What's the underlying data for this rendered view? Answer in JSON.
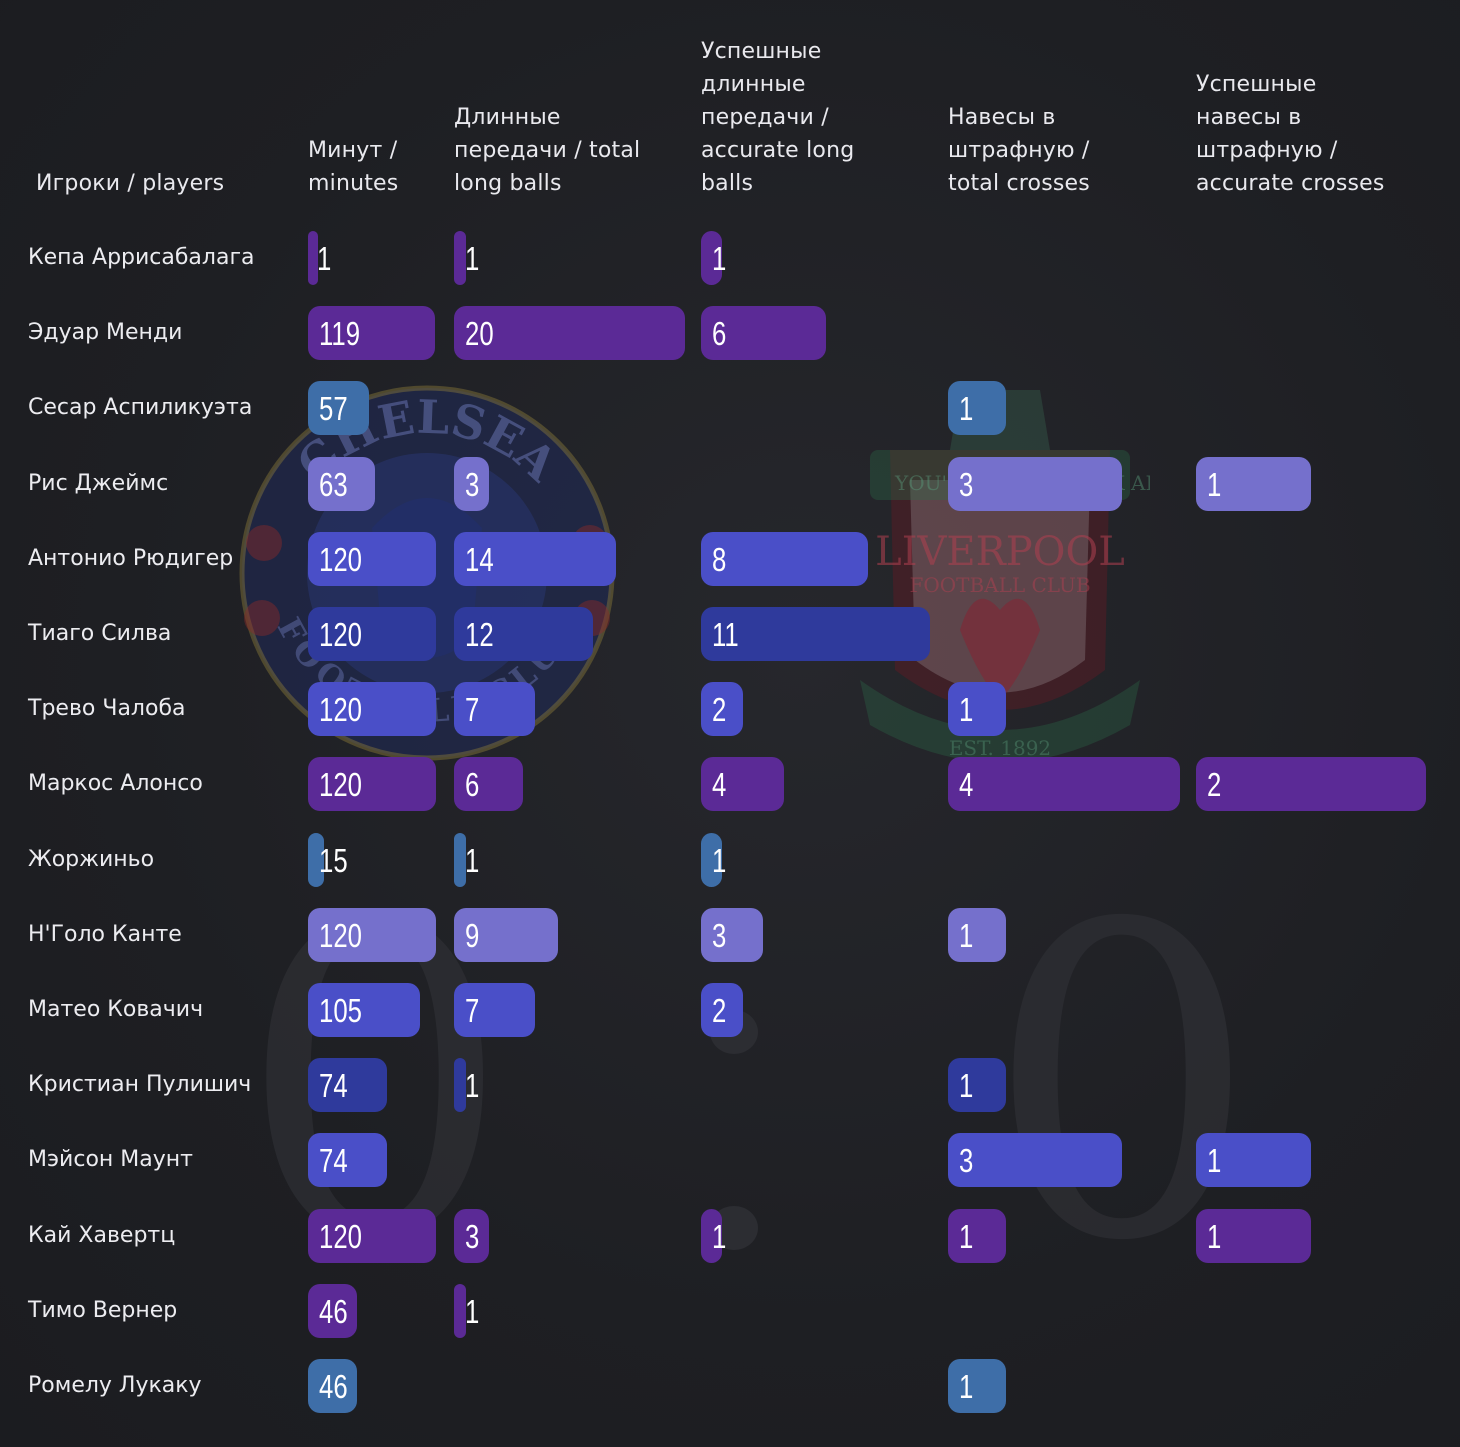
{
  "watermark": {
    "left_score": "0",
    "right_score": "0",
    "left_crest_text": "CHELSEA",
    "left_crest_sub": "FOOTBALL CLUB",
    "right_crest_text": "LIVERPOOL",
    "right_crest_sub": "FOOTBALL CLUB",
    "right_crest_banner": "YOU'LL NEVER WALK ALONE",
    "right_crest_year": "EST. 1892"
  },
  "colors": {
    "background": "#1e1f23",
    "purple": "#5b2a96",
    "lavender": "#7570cc",
    "blue": "#4a4fc8",
    "navy": "#2f3a9c",
    "steel": "#3e6ea8"
  },
  "chart_data": {
    "type": "bar",
    "layout": "horizontal bar table",
    "columns": [
      {
        "key": "minutes",
        "header": "Минут /\nminutes"
      },
      {
        "key": "long_balls",
        "header": "Длинные\nпередачи / total\nlong balls"
      },
      {
        "key": "accurate_long_balls",
        "header": "Успешные\nдлинные\nпередачи /\naccurate long\nballs"
      },
      {
        "key": "crosses",
        "header": "Навесы в\nштрафную /\ntotal crosses"
      },
      {
        "key": "accurate_crosses",
        "header": "Успешные\nнавесы в\nштрафную /\naccurate crosses"
      }
    ],
    "row_header": "Игроки / players",
    "rows": [
      {
        "player": "Кепа Аррисабалага",
        "color": "purple",
        "values": [
          1,
          1,
          1,
          null,
          null
        ]
      },
      {
        "player": "Эдуар Менди",
        "color": "purple",
        "values": [
          119,
          20,
          6,
          null,
          null
        ]
      },
      {
        "player": "Сесар Аспиликуэта",
        "color": "steel",
        "values": [
          57,
          null,
          null,
          1,
          null
        ]
      },
      {
        "player": "Рис Джеймс",
        "color": "lavender",
        "values": [
          63,
          3,
          null,
          3,
          1
        ]
      },
      {
        "player": "Антонио Рюдигер",
        "color": "blue",
        "values": [
          120,
          14,
          8,
          null,
          null
        ]
      },
      {
        "player": "Тиаго Силва",
        "color": "navy",
        "values": [
          120,
          12,
          11,
          null,
          null
        ]
      },
      {
        "player": "Трево Чалоба",
        "color": "blue",
        "values": [
          120,
          7,
          2,
          1,
          null
        ]
      },
      {
        "player": "Маркос Алонсо",
        "color": "purple",
        "values": [
          120,
          6,
          4,
          4,
          2
        ]
      },
      {
        "player": "Жоржиньо",
        "color": "steel",
        "values": [
          15,
          1,
          1,
          null,
          null
        ]
      },
      {
        "player": "Н'Голо Канте",
        "color": "lavender",
        "values": [
          120,
          9,
          3,
          1,
          null
        ]
      },
      {
        "player": "Матео Ковачич",
        "color": "blue",
        "values": [
          105,
          7,
          2,
          null,
          null
        ]
      },
      {
        "player": "Кристиан Пулишич",
        "color": "navy",
        "values": [
          74,
          1,
          null,
          1,
          null
        ]
      },
      {
        "player": "Мэйсон Маунт",
        "color": "blue",
        "values": [
          74,
          null,
          null,
          3,
          1
        ]
      },
      {
        "player": "Кай Хавертц",
        "color": "purple",
        "values": [
          120,
          3,
          1,
          1,
          1
        ]
      },
      {
        "player": "Тимо Вернер",
        "color": "purple",
        "values": [
          46,
          1,
          null,
          null,
          null
        ]
      },
      {
        "player": "Ромелу Лукаку",
        "color": "steel",
        "values": [
          46,
          null,
          null,
          1,
          null
        ]
      }
    ]
  }
}
